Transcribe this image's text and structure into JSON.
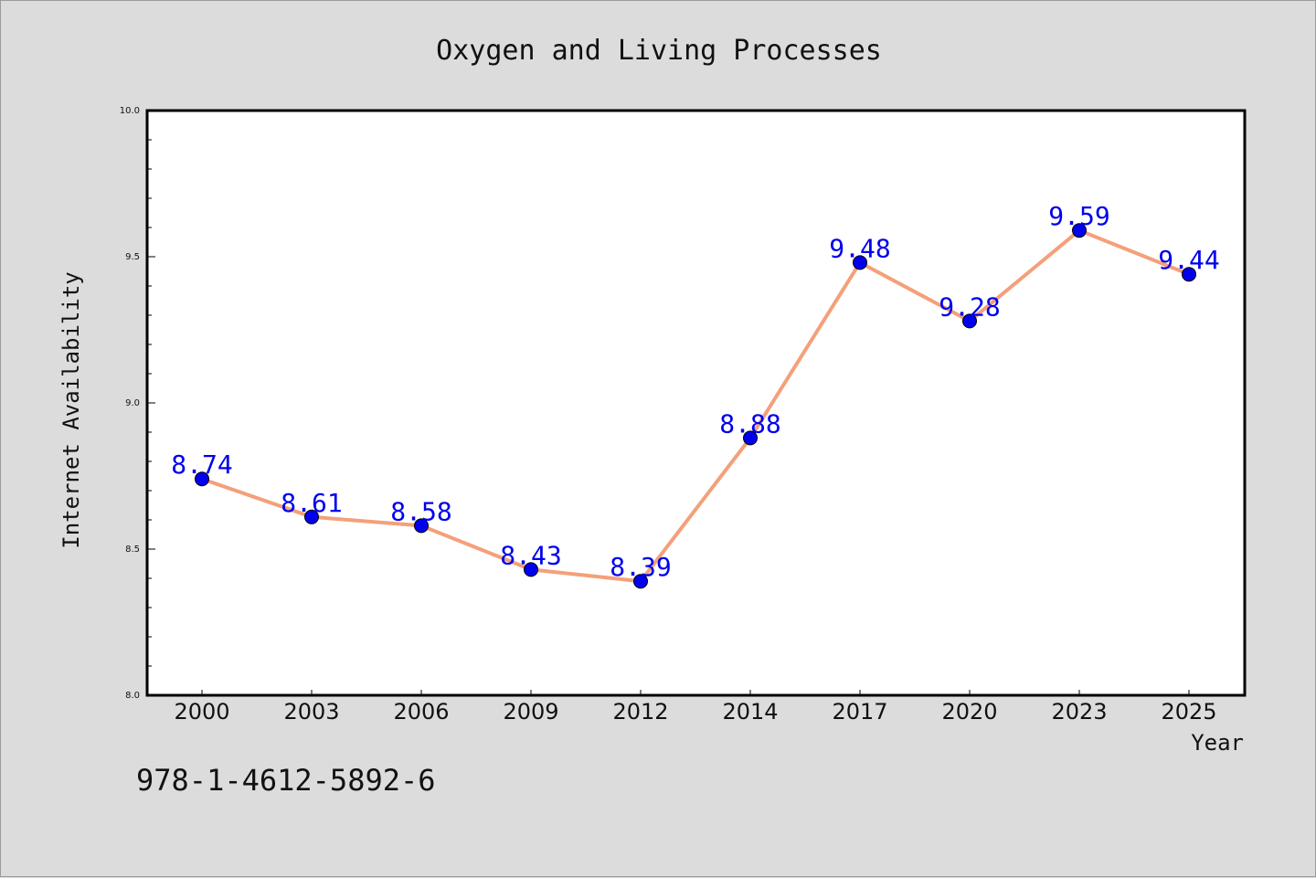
{
  "chart_data": {
    "type": "line",
    "title": "Oxygen and Living Processes",
    "xlabel": "Year",
    "ylabel": "Internet Availability",
    "categories": [
      "2000",
      "2003",
      "2006",
      "2009",
      "2012",
      "2014",
      "2017",
      "2020",
      "2023",
      "2025"
    ],
    "series": [
      {
        "values": [
          8.74,
          8.61,
          8.58,
          8.43,
          8.39,
          8.88,
          9.48,
          9.28,
          9.59,
          9.44
        ]
      }
    ],
    "data_labels": [
      "8.74",
      "8.61",
      "8.58",
      "8.43",
      "8.39",
      "8.88",
      "9.48",
      "9.28",
      "9.59",
      "9.44"
    ],
    "ylim": [
      8.0,
      10.0
    ],
    "yticks": [
      "8.0",
      "8.5",
      "9.0",
      "9.5",
      "10.0"
    ],
    "grid": false,
    "line_color": "#f4a07a",
    "marker_color": "#0000ee",
    "label_color": "#0000ee"
  },
  "annotation": {
    "isbn": "978-1-4612-5892-6"
  }
}
